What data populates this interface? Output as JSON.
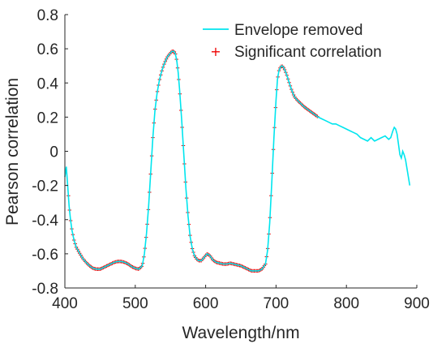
{
  "chart_data": {
    "type": "line",
    "xlabel": "Wavelength/nm",
    "ylabel": "Pearson correlation",
    "xlim": [
      400,
      900
    ],
    "ylim": [
      -0.8,
      0.8
    ],
    "x_ticks": [
      400,
      500,
      600,
      700,
      800,
      900
    ],
    "x_tick_labels": [
      "400",
      "500",
      "600",
      "700",
      "800",
      "900"
    ],
    "y_ticks": [
      -0.8,
      -0.6,
      -0.4,
      -0.2,
      0,
      0.2,
      0.4,
      0.6,
      0.8
    ],
    "y_tick_labels": [
      "-0.8",
      "-0.6",
      "-0.4",
      "-0.2",
      "0",
      "0.2",
      "0.4",
      "0.6",
      "0.8"
    ],
    "grid": false,
    "legend_position": "top-right",
    "series": [
      {
        "name": "Envelope removed",
        "color": "#00e5ee",
        "style": "line",
        "x": [
          400,
          402,
          404,
          406,
          408,
          410,
          413,
          416,
          420,
          425,
          430,
          435,
          440,
          445,
          450,
          455,
          460,
          465,
          470,
          475,
          480,
          485,
          490,
          495,
          500,
          505,
          510,
          513,
          516,
          519,
          522,
          525,
          528,
          531,
          534,
          537,
          540,
          543,
          546,
          549,
          552,
          555,
          557,
          559,
          561,
          563,
          566,
          569,
          572,
          575,
          578,
          581,
          584,
          587,
          590,
          594,
          598,
          602,
          606,
          610,
          615,
          620,
          625,
          630,
          635,
          640,
          645,
          650,
          655,
          660,
          665,
          670,
          675,
          680,
          685,
          688,
          691,
          694,
          697,
          700,
          702,
          704,
          706,
          708,
          710,
          712,
          715,
          718,
          722,
          726,
          730,
          735,
          740,
          745,
          750,
          755,
          760,
          765,
          770,
          775,
          780,
          785,
          790,
          795,
          800,
          805,
          810,
          815,
          820,
          825,
          830,
          835,
          840,
          845,
          850,
          855,
          860,
          863,
          866,
          868,
          870,
          872,
          874,
          876,
          878,
          880,
          882,
          884,
          886,
          888,
          890
        ],
        "y": [
          -0.15,
          -0.09,
          -0.2,
          -0.32,
          -0.4,
          -0.46,
          -0.52,
          -0.56,
          -0.59,
          -0.625,
          -0.65,
          -0.67,
          -0.685,
          -0.69,
          -0.69,
          -0.68,
          -0.67,
          -0.66,
          -0.65,
          -0.645,
          -0.645,
          -0.65,
          -0.66,
          -0.675,
          -0.685,
          -0.69,
          -0.67,
          -0.6,
          -0.48,
          -0.32,
          -0.12,
          0.08,
          0.24,
          0.34,
          0.41,
          0.46,
          0.5,
          0.53,
          0.555,
          0.57,
          0.585,
          0.585,
          0.57,
          0.53,
          0.46,
          0.36,
          0.18,
          -0.02,
          -0.22,
          -0.38,
          -0.5,
          -0.57,
          -0.61,
          -0.63,
          -0.64,
          -0.64,
          -0.62,
          -0.6,
          -0.61,
          -0.635,
          -0.65,
          -0.655,
          -0.66,
          -0.66,
          -0.655,
          -0.66,
          -0.665,
          -0.67,
          -0.68,
          -0.69,
          -0.7,
          -0.7,
          -0.7,
          -0.69,
          -0.66,
          -0.58,
          -0.42,
          -0.18,
          0.08,
          0.3,
          0.42,
          0.47,
          0.49,
          0.5,
          0.495,
          0.48,
          0.45,
          0.41,
          0.36,
          0.32,
          0.3,
          0.28,
          0.26,
          0.245,
          0.23,
          0.215,
          0.2,
          0.19,
          0.18,
          0.17,
          0.16,
          0.16,
          0.15,
          0.14,
          0.13,
          0.12,
          0.11,
          0.1,
          0.08,
          0.07,
          0.06,
          0.08,
          0.06,
          0.07,
          0.08,
          0.09,
          0.07,
          0.08,
          0.12,
          0.14,
          0.13,
          0.1,
          0.04,
          -0.02,
          -0.04,
          0.0,
          -0.02,
          -0.05,
          -0.1,
          -0.15,
          -0.2
        ]
      },
      {
        "name": "Significant correlation",
        "color": "#ee0000",
        "style": "marker-plus",
        "ranges": [
          [
            405,
            760
          ]
        ]
      }
    ]
  }
}
